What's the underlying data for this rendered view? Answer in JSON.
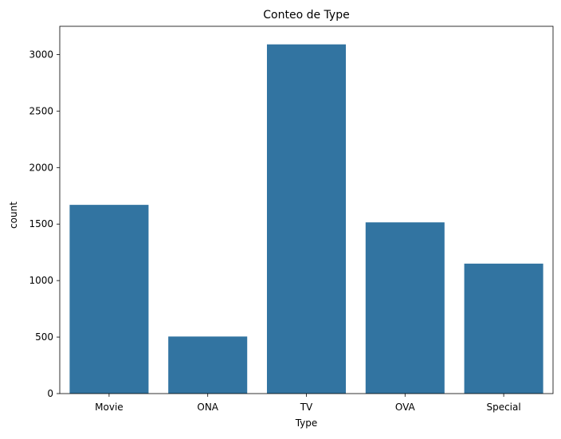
{
  "chart_data": {
    "type": "bar",
    "title": "Conteo de Type",
    "xlabel": "Type",
    "ylabel": "count",
    "categories": [
      "Movie",
      "ONA",
      "TV",
      "OVA",
      "Special"
    ],
    "values": [
      1670,
      505,
      3090,
      1515,
      1150
    ],
    "ylim": [
      0,
      3250
    ],
    "yticks": [
      0,
      500,
      1000,
      1500,
      2000,
      2500,
      3000
    ],
    "grid": false,
    "legend": "none",
    "colors": {
      "bar": "#3274a1",
      "axis": "#000000",
      "background": "#ffffff"
    }
  }
}
